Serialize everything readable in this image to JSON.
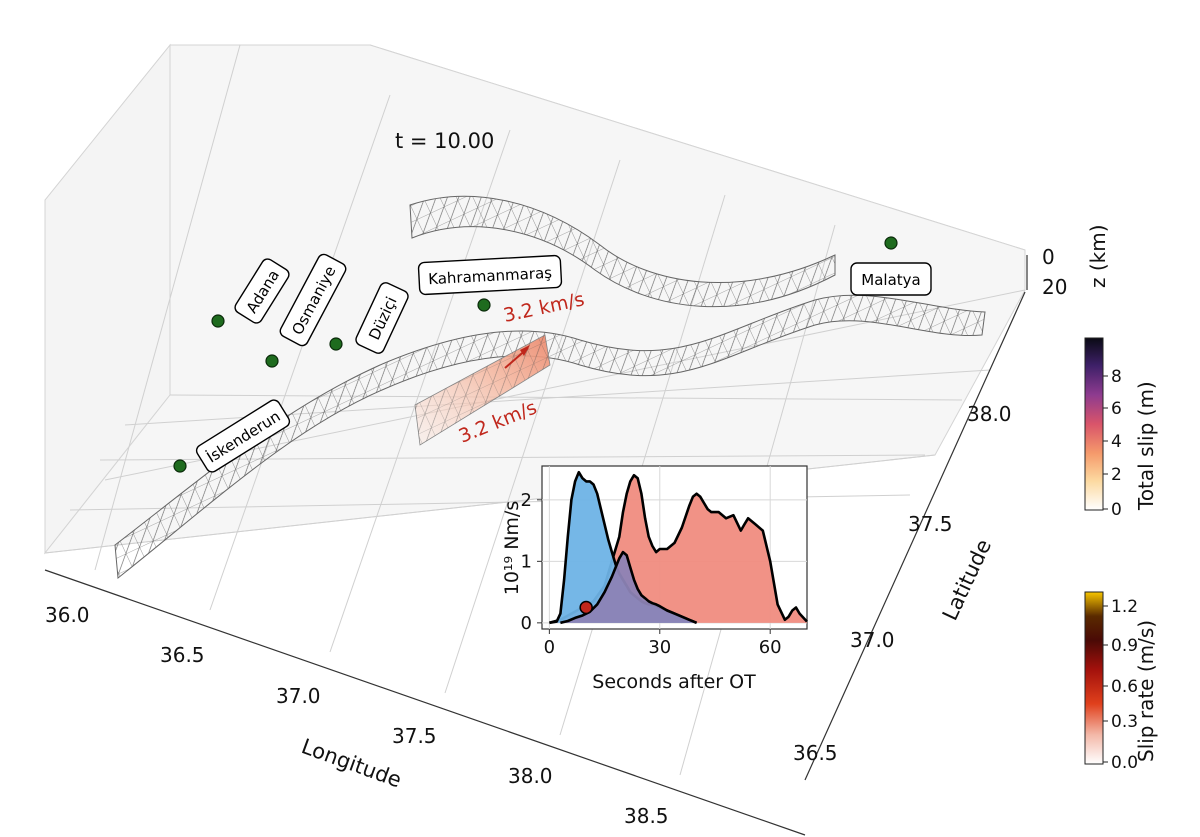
{
  "time_label": "t = 10.00",
  "cities": [
    {
      "name": "Adana"
    },
    {
      "name": "Osmaniye"
    },
    {
      "name": "Düziçi"
    },
    {
      "name": "Kahramanmaraş"
    },
    {
      "name": "Malatya"
    },
    {
      "name": "İskenderun"
    }
  ],
  "rupture_speed_labels": [
    "3.2 km/s",
    "3.2 km/s"
  ],
  "axes": {
    "longitude": {
      "label": "Longitude",
      "ticks": [
        "36.0",
        "36.5",
        "37.0",
        "37.5",
        "38.0",
        "38.5"
      ]
    },
    "latitude": {
      "label": "Latitude",
      "ticks": [
        "36.5",
        "37.0",
        "37.5",
        "38.0"
      ]
    },
    "depth": {
      "label": "z (km)",
      "ticks": [
        "0",
        "20"
      ]
    }
  },
  "colorbars": [
    {
      "label": "Total slip (m)",
      "ticks": [
        "0",
        "2",
        "4",
        "6",
        "8"
      ],
      "colors": [
        "#ffffff",
        "#fcd9a0",
        "#f59a6b",
        "#d9546a",
        "#8e3b8f",
        "#3e2068",
        "#0a0a14"
      ]
    },
    {
      "label": "Slip rate (m/s)",
      "ticks": [
        "0.0",
        "0.3",
        "0.6",
        "0.9",
        "1.2"
      ],
      "colors": [
        "#ffffff",
        "#f3b8a8",
        "#e0401c",
        "#a3110c",
        "#4a0a06",
        "#5a2a00",
        "#f7c500"
      ]
    }
  ],
  "chart_data": {
    "type": "area",
    "xlabel": "Seconds after OT",
    "ylabel": "10¹⁹ Nm/s",
    "xlim": [
      -2,
      70
    ],
    "ylim": [
      -0.1,
      2.55
    ],
    "xticks": [
      0,
      30,
      60
    ],
    "yticks": [
      0,
      1,
      2
    ],
    "grid": true,
    "series": [
      {
        "color": "#f08c80",
        "x": [
          0,
          3,
          6,
          9,
          12,
          15,
          17,
          19,
          20,
          21,
          22,
          23,
          24,
          25,
          26,
          27,
          28,
          29,
          30,
          32,
          34,
          36,
          38,
          39,
          40,
          41,
          42,
          43,
          44,
          46,
          48,
          50,
          52,
          53,
          54,
          56,
          58,
          60,
          62,
          64,
          65,
          66,
          67,
          68,
          70
        ],
        "y": [
          0,
          0.05,
          0.15,
          0.25,
          0.35,
          0.6,
          1.0,
          1.4,
          1.8,
          2.1,
          2.3,
          2.4,
          2.35,
          2.1,
          1.7,
          1.4,
          1.25,
          1.15,
          1.2,
          1.2,
          1.3,
          1.55,
          1.9,
          2.05,
          2.1,
          2.05,
          1.95,
          1.85,
          1.8,
          1.8,
          1.7,
          1.75,
          1.5,
          1.6,
          1.7,
          1.6,
          1.5,
          1.0,
          0.3,
          0.05,
          0.1,
          0.2,
          0.25,
          0.15,
          0.02
        ]
      },
      {
        "color": "#6eb3e6",
        "x": [
          0,
          2,
          3,
          4,
          5,
          6,
          7,
          8,
          9,
          10,
          11,
          12,
          13,
          14,
          15,
          16,
          17,
          18,
          19,
          20,
          21,
          22,
          23,
          24,
          25,
          26,
          27,
          28,
          29,
          30,
          32,
          34,
          36,
          38,
          40
        ],
        "y": [
          0,
          0.02,
          0.15,
          0.7,
          1.4,
          2.0,
          2.3,
          2.45,
          2.35,
          2.3,
          2.3,
          2.25,
          2.1,
          1.85,
          1.6,
          1.35,
          1.15,
          0.95,
          0.8,
          0.7,
          0.6,
          0.5,
          0.45,
          0.4,
          0.35,
          0.32,
          0.3,
          0.3,
          0.28,
          0.25,
          0.2,
          0.15,
          0.1,
          0.05,
          0
        ]
      },
      {
        "color": "#8c83b5",
        "x": [
          3,
          5,
          7,
          9,
          11,
          13,
          15,
          17,
          18,
          19,
          20,
          21,
          22,
          23,
          24,
          25,
          26,
          27,
          28,
          29,
          30,
          32,
          34,
          36,
          38,
          40
        ],
        "y": [
          0,
          0.03,
          0.08,
          0.12,
          0.18,
          0.3,
          0.5,
          0.75,
          0.9,
          1.05,
          1.15,
          1.1,
          0.9,
          0.7,
          0.55,
          0.45,
          0.4,
          0.35,
          0.32,
          0.3,
          0.27,
          0.2,
          0.15,
          0.1,
          0.05,
          0
        ]
      }
    ],
    "current_marker": {
      "x": 10,
      "y": 0.25,
      "color": "#c0271c"
    }
  }
}
